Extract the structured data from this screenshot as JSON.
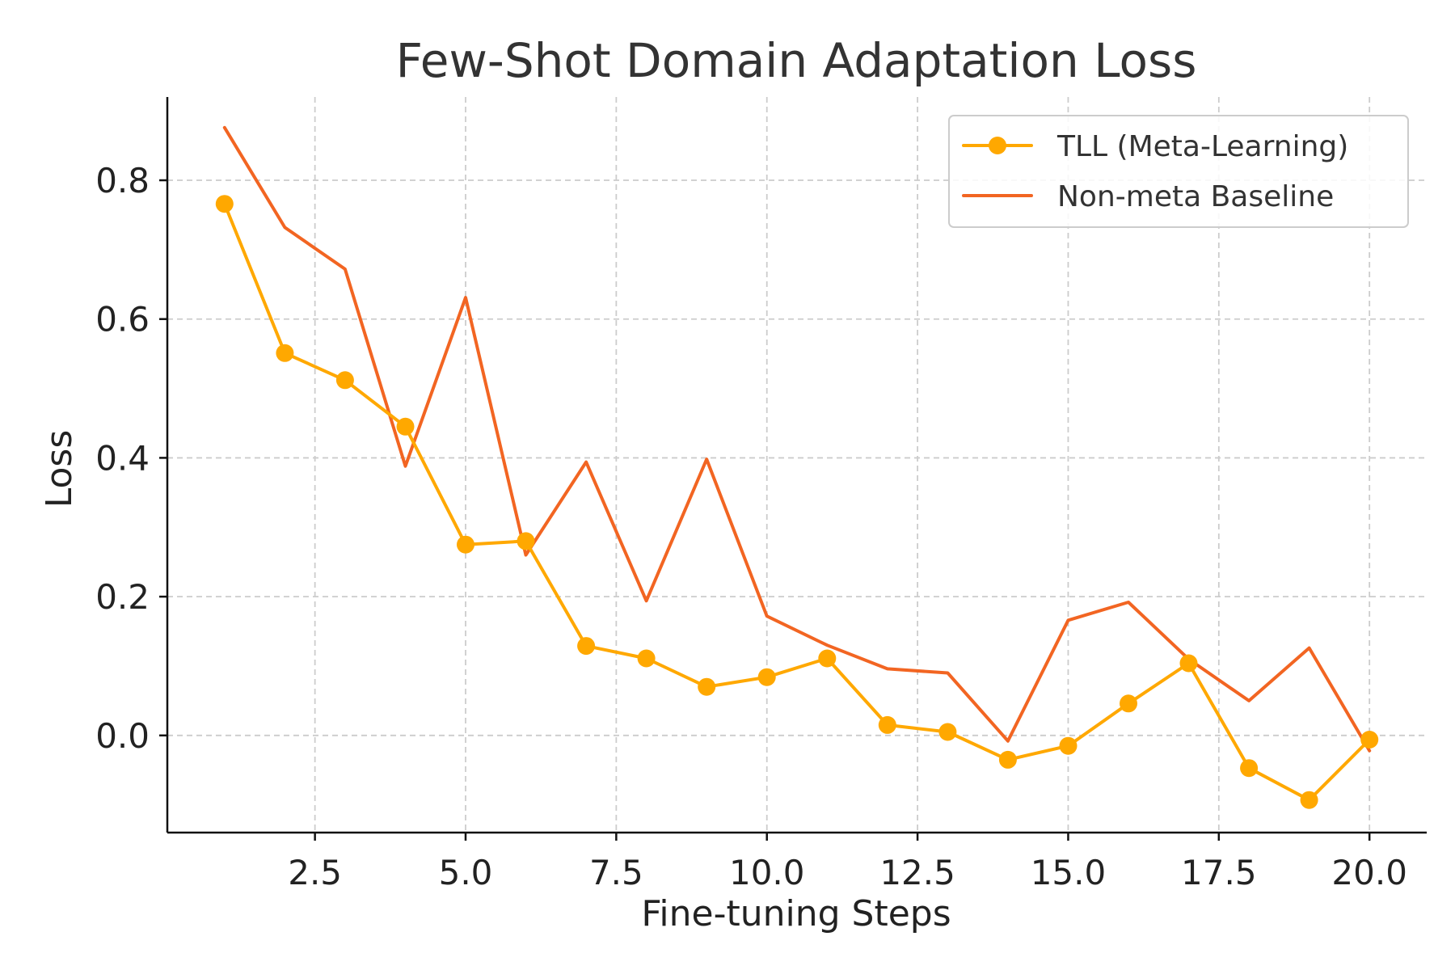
{
  "chart_data": {
    "type": "line",
    "title": "Few-Shot Domain Adaptation Loss",
    "xlabel": "Fine-tuning Steps",
    "ylabel": "Loss",
    "xlim": [
      0.05,
      20.95
    ],
    "ylim": [
      -0.14,
      0.92
    ],
    "xticks": [
      2.5,
      5.0,
      7.5,
      10.0,
      12.5,
      15.0,
      17.5,
      20.0
    ],
    "xtick_labels": [
      "2.5",
      "5.0",
      "7.5",
      "10.0",
      "12.5",
      "15.0",
      "17.5",
      "20.0"
    ],
    "yticks": [
      0.0,
      0.2,
      0.4,
      0.6,
      0.8
    ],
    "ytick_labels": [
      "0.0",
      "0.2",
      "0.4",
      "0.6",
      "0.8"
    ],
    "grid": true,
    "legend_position": "top-right",
    "x": [
      1,
      2,
      3,
      4,
      5,
      6,
      7,
      8,
      9,
      10,
      11,
      12,
      13,
      14,
      15,
      16,
      17,
      18,
      19,
      20
    ],
    "series": [
      {
        "name": "TLL (Meta-Learning)",
        "color": "#FFA800",
        "marker": "circle",
        "values": [
          0.766,
          0.551,
          0.512,
          0.445,
          0.275,
          0.28,
          0.129,
          0.111,
          0.07,
          0.084,
          0.111,
          0.015,
          0.005,
          -0.035,
          -0.015,
          0.046,
          0.104,
          -0.047,
          -0.093,
          -0.006
        ]
      },
      {
        "name": "Non-meta Baseline",
        "color": "#F26522",
        "marker": "none",
        "values": [
          0.876,
          0.732,
          0.672,
          0.388,
          0.631,
          0.26,
          0.394,
          0.194,
          0.398,
          0.172,
          0.13,
          0.096,
          0.09,
          -0.008,
          0.166,
          0.192,
          0.11,
          0.05,
          0.126,
          -0.022
        ]
      }
    ]
  }
}
